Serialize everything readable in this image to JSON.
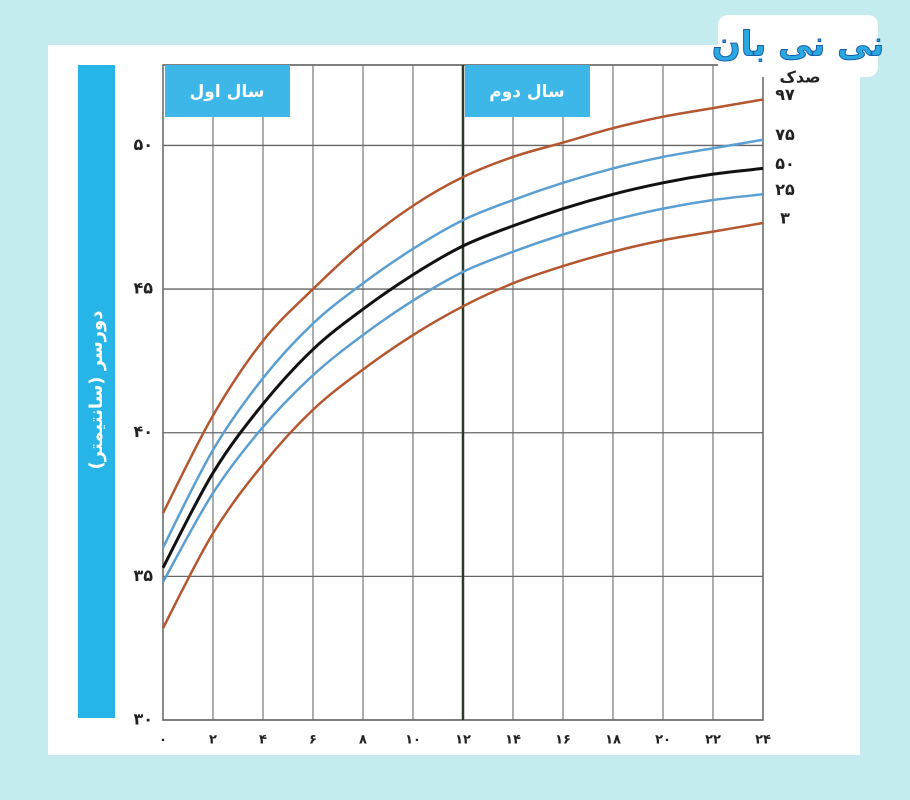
{
  "logo": "نی نی بان",
  "chart_data": {
    "type": "line",
    "y_label": "دورسر (سانتیمتر)",
    "panels": [
      "سال اول",
      "سال دوم"
    ],
    "legend_title": "صدک",
    "x": [
      0,
      2,
      4,
      6,
      8,
      10,
      12,
      14,
      16,
      18,
      20,
      22,
      24
    ],
    "xlim": [
      0,
      24
    ],
    "ylim": [
      30,
      52.8
    ],
    "xticks": [
      {
        "value": 0,
        "label": "۰"
      },
      {
        "value": 2,
        "label": "۲"
      },
      {
        "value": 4,
        "label": "۴"
      },
      {
        "value": 6,
        "label": "۶"
      },
      {
        "value": 8,
        "label": "۸"
      },
      {
        "value": 10,
        "label": "۱۰"
      },
      {
        "value": 12,
        "label": "۱۲"
      },
      {
        "value": 14,
        "label": "۱۴"
      },
      {
        "value": 16,
        "label": "۱۶"
      },
      {
        "value": 18,
        "label": "۱۸"
      },
      {
        "value": 20,
        "label": "۲۰"
      },
      {
        "value": 22,
        "label": "۲۲"
      },
      {
        "value": 24,
        "label": "۲۴"
      }
    ],
    "yticks": [
      {
        "value": 30,
        "label": "۳۰"
      },
      {
        "value": 35,
        "label": "۳۵"
      },
      {
        "value": 40,
        "label": "۴۰"
      },
      {
        "value": 45,
        "label": "۴۵"
      },
      {
        "value": 50,
        "label": "۵۰"
      }
    ],
    "grid": true,
    "series": [
      {
        "name": "۹۷",
        "color": "#b4562f",
        "values": [
          37.2,
          40.6,
          43.2,
          45.0,
          46.6,
          47.9,
          48.9,
          49.6,
          50.1,
          50.6,
          51.0,
          51.3,
          51.6
        ]
      },
      {
        "name": "۷۵",
        "color": "#5b9fd2",
        "values": [
          36.0,
          39.4,
          41.9,
          43.8,
          45.2,
          46.4,
          47.4,
          48.1,
          48.7,
          49.2,
          49.6,
          49.9,
          50.2
        ]
      },
      {
        "name": "۵۰",
        "color": "#111111",
        "values": [
          35.3,
          38.6,
          41.0,
          42.9,
          44.3,
          45.5,
          46.5,
          47.2,
          47.8,
          48.3,
          48.7,
          49.0,
          49.2
        ]
      },
      {
        "name": "۲۵",
        "color": "#5b9fd2",
        "values": [
          34.8,
          37.9,
          40.2,
          42.0,
          43.4,
          44.6,
          45.6,
          46.3,
          46.9,
          47.4,
          47.8,
          48.1,
          48.3
        ]
      },
      {
        "name": "۳",
        "color": "#b4562f",
        "values": [
          33.2,
          36.5,
          38.9,
          40.8,
          42.2,
          43.4,
          44.4,
          45.2,
          45.8,
          46.3,
          46.7,
          47.0,
          47.3
        ]
      }
    ]
  }
}
